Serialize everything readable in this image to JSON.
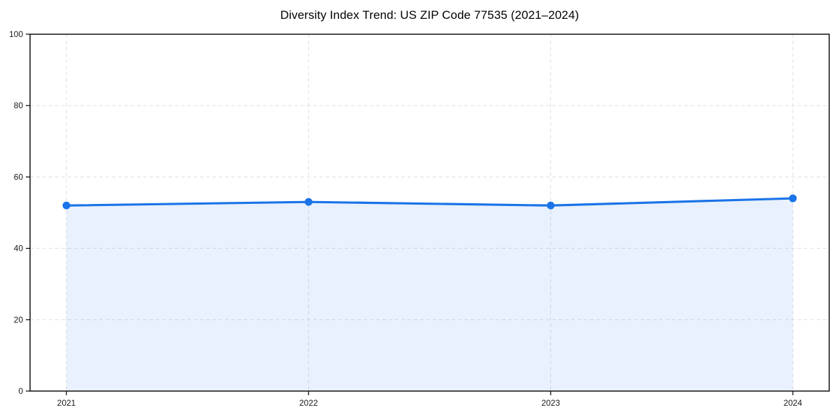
{
  "page": {
    "background": "#ffffff"
  },
  "chart_data": {
    "type": "area",
    "title": "Diversity Index Trend: US ZIP Code 77535 (2021–2024)",
    "categories": [
      "2021",
      "2022",
      "2023",
      "2024"
    ],
    "series": [
      {
        "name": "Diversity Index",
        "values": [
          52,
          53,
          52,
          54
        ]
      }
    ],
    "xlabel": "",
    "ylabel": "",
    "ylim": [
      0,
      100
    ],
    "yticks": [
      0,
      20,
      40,
      60,
      80,
      100
    ],
    "grid": true,
    "grid_style": "dashed",
    "legend_position": "none",
    "marker": "circle",
    "line_color": "#1a73e8",
    "fill_color": "rgba(26,115,232,0.10)",
    "grid_color": "#dfdfdf",
    "axis_color": "#000000",
    "tick_label_color": "#1a1a1a",
    "title_color": "#000000"
  }
}
